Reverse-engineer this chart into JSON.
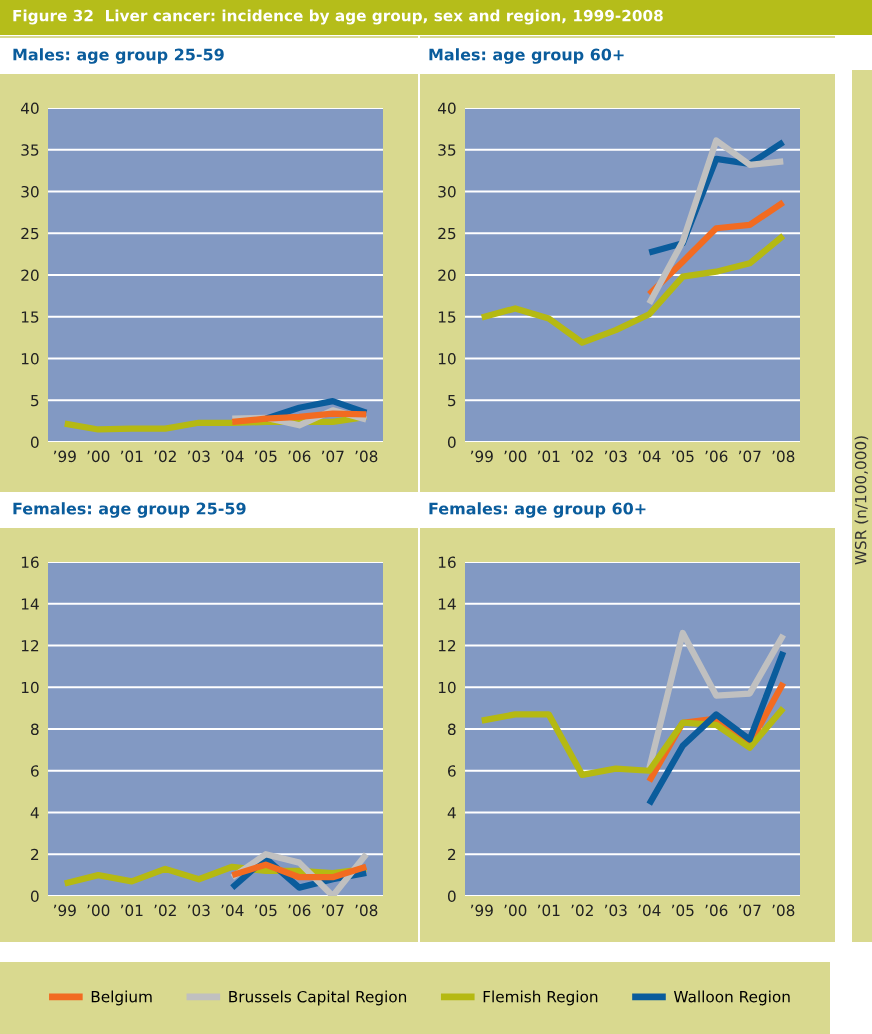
{
  "chart_data": [
    {
      "type": "line",
      "title": "Males: age group 25-59",
      "annotations": [
        "Figure 32  Liver cancer: incidence by age group, sex and region, 1999-2008"
      ],
      "categories": [
        "’99",
        "’00",
        "’01",
        "’02",
        "’03",
        "’04",
        "’05",
        "’06",
        "’07",
        "’08"
      ],
      "ylim": [
        0,
        40
      ],
      "yticks": [
        0,
        5,
        10,
        15,
        20,
        25,
        30,
        35,
        40
      ],
      "grid": "y",
      "series": [
        {
          "color": "#b5b912",
          "values": [
            2.2,
            1.5,
            1.6,
            1.6,
            2.3,
            2.3,
            2.4,
            2.4,
            2.4,
            3.0
          ]
        },
        {
          "color": "#c0c0c0",
          "values": [
            null,
            null,
            null,
            null,
            null,
            2.8,
            2.9,
            2.0,
            3.8,
            2.7
          ]
        },
        {
          "color": "#0a5c9c",
          "values": [
            null,
            null,
            null,
            null,
            null,
            null,
            2.8,
            4.1,
            4.9,
            3.5
          ]
        },
        {
          "color": "#f26b21",
          "values": [
            null,
            null,
            null,
            null,
            null,
            2.4,
            2.8,
            3.0,
            3.4,
            3.3
          ]
        }
      ]
    },
    {
      "type": "line",
      "title": "Males: age group 60+",
      "ylabel": "WSR (n/100,000)",
      "categories": [
        "’99",
        "’00",
        "’01",
        "’02",
        "’03",
        "’04",
        "’05",
        "’06",
        "’07",
        "’08"
      ],
      "ylim": [
        0,
        40
      ],
      "yticks": [
        0,
        5,
        10,
        15,
        20,
        25,
        30,
        35,
        40
      ],
      "grid": "y",
      "series": [
        {
          "color": "#b5b912",
          "values": [
            14.9,
            16.0,
            14.8,
            11.9,
            13.4,
            15.3,
            19.8,
            20.4,
            21.4,
            24.7
          ]
        },
        {
          "color": "#f26b21",
          "values": [
            null,
            null,
            null,
            null,
            null,
            17.7,
            21.6,
            25.6,
            26.0,
            28.7
          ]
        },
        {
          "color": "#0a5c9c",
          "values": [
            null,
            null,
            null,
            null,
            null,
            22.7,
            23.8,
            33.9,
            33.3,
            35.9
          ]
        },
        {
          "color": "#c0c0c0",
          "values": [
            null,
            null,
            null,
            null,
            null,
            16.6,
            24.0,
            36.1,
            33.2,
            33.6
          ]
        }
      ]
    },
    {
      "type": "line",
      "title": "Females: age group 25-59",
      "categories": [
        "’99",
        "’00",
        "’01",
        "’02",
        "’03",
        "’04",
        "’05",
        "’06",
        "’07",
        "’08"
      ],
      "ylim": [
        0,
        16
      ],
      "yticks": [
        0,
        2,
        4,
        6,
        8,
        10,
        12,
        14,
        16
      ],
      "grid": "y",
      "series": [
        {
          "color": "#b5b912",
          "values": [
            0.6,
            1.0,
            0.7,
            1.3,
            0.8,
            1.4,
            1.2,
            1.2,
            1.1,
            1.3
          ]
        },
        {
          "color": "#0a5c9c",
          "values": [
            null,
            null,
            null,
            null,
            null,
            0.4,
            1.8,
            0.4,
            0.8,
            1.1
          ]
        },
        {
          "color": "#c0c0c0",
          "values": [
            null,
            null,
            null,
            null,
            null,
            0.9,
            2.0,
            1.6,
            0.0,
            2.0
          ]
        },
        {
          "color": "#f26b21",
          "values": [
            null,
            null,
            null,
            null,
            null,
            1.0,
            1.5,
            0.9,
            0.9,
            1.4
          ]
        }
      ]
    },
    {
      "type": "line",
      "title": "Females: age group 60+",
      "categories": [
        "’99",
        "’00",
        "’01",
        "’02",
        "’03",
        "’04",
        "’05",
        "’06",
        "’07",
        "’08"
      ],
      "ylim": [
        0,
        16
      ],
      "yticks": [
        0,
        2,
        4,
        6,
        8,
        10,
        12,
        14,
        16
      ],
      "grid": "y",
      "legend": "bottom",
      "series": [
        {
          "name": "Belgium",
          "color": "#f26b21",
          "values": [
            null,
            null,
            null,
            null,
            null,
            5.5,
            8.3,
            8.5,
            7.3,
            10.2
          ]
        },
        {
          "name": "Brussels Capital Region",
          "color": "#c0c0c0",
          "values": [
            null,
            null,
            null,
            null,
            null,
            6.1,
            12.6,
            9.6,
            9.7,
            12.5
          ]
        },
        {
          "name": "Flemish Region",
          "color": "#b5b912",
          "values": [
            8.4,
            8.7,
            8.7,
            5.8,
            6.1,
            6.0,
            8.3,
            8.2,
            7.1,
            9.0
          ]
        },
        {
          "name": "Walloon Region",
          "color": "#0a5c9c",
          "values": [
            null,
            null,
            null,
            null,
            null,
            4.4,
            7.2,
            8.7,
            7.5,
            11.7
          ]
        }
      ]
    }
  ]
}
